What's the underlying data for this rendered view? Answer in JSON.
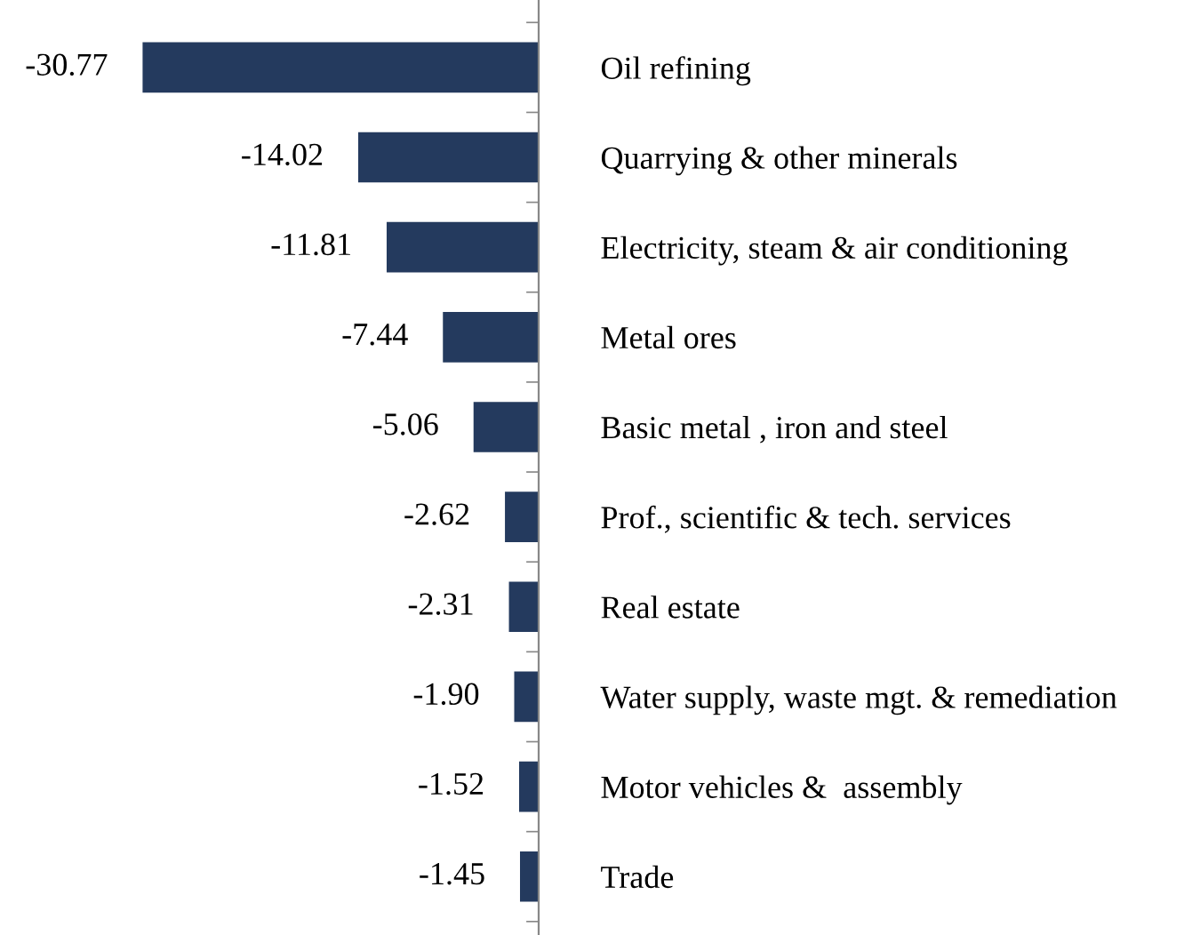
{
  "chart_data": {
    "type": "bar",
    "orientation": "horizontal",
    "categories": [
      "Oil refining",
      "Quarrying & other minerals",
      "Electricity, steam & air conditioning",
      "Metal ores",
      "Basic metal , iron and steel",
      "Prof., scientific & tech. services",
      "Real estate",
      "Water supply, waste mgt. & remediation",
      "Motor vehicles &  assembly",
      "Trade"
    ],
    "values": [
      -30.77,
      -14.02,
      -11.81,
      -7.44,
      -5.06,
      -2.62,
      -2.31,
      -1.9,
      -1.52,
      -1.45
    ],
    "value_labels": [
      "-30.77",
      "-14.02",
      "-11.81",
      "-7.44",
      "-5.06",
      "-2.62",
      "-2.31",
      "-1.90",
      "-1.52",
      "-1.45"
    ],
    "color": "#243a5e",
    "grid": false,
    "legend": false
  }
}
